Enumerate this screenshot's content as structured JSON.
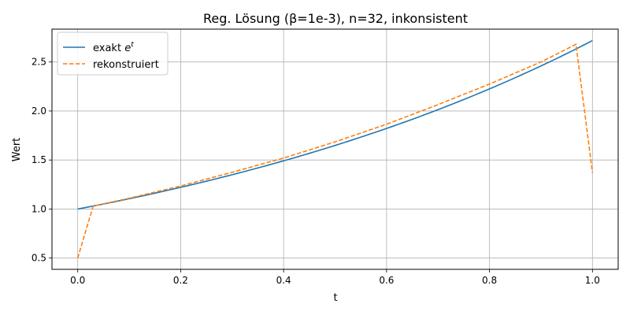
{
  "chart_data": {
    "type": "line",
    "title": "Reg. Lösung (β=1e-3), n=32, inkonsistent",
    "xlabel": "t",
    "ylabel": "Wert",
    "xlim": [
      -0.05,
      1.05
    ],
    "ylim": [
      0.385,
      2.835
    ],
    "xticks": [
      "0.0",
      "0.2",
      "0.4",
      "0.6",
      "0.8",
      "1.0"
    ],
    "yticks": [
      "0.5",
      "1.0",
      "1.5",
      "2.0",
      "2.5"
    ],
    "grid": true,
    "legend_position": "top-left",
    "series": [
      {
        "name_prefix": "exakt ",
        "name_math_base": "e",
        "name_math_sup": "t",
        "color": "#1f77b4",
        "style": "solid",
        "function": "exp"
      },
      {
        "name": "rekonstruiert",
        "color": "#ff7f0e",
        "style": "dashed",
        "x": [
          0.0,
          0.03,
          0.1,
          0.2,
          0.3,
          0.4,
          0.5,
          0.6,
          0.7,
          0.8,
          0.9,
          0.968,
          1.0
        ],
        "y": [
          0.5,
          1.03,
          1.11,
          1.235,
          1.375,
          1.52,
          1.685,
          1.865,
          2.065,
          2.275,
          2.5,
          2.68,
          1.37
        ]
      }
    ]
  }
}
